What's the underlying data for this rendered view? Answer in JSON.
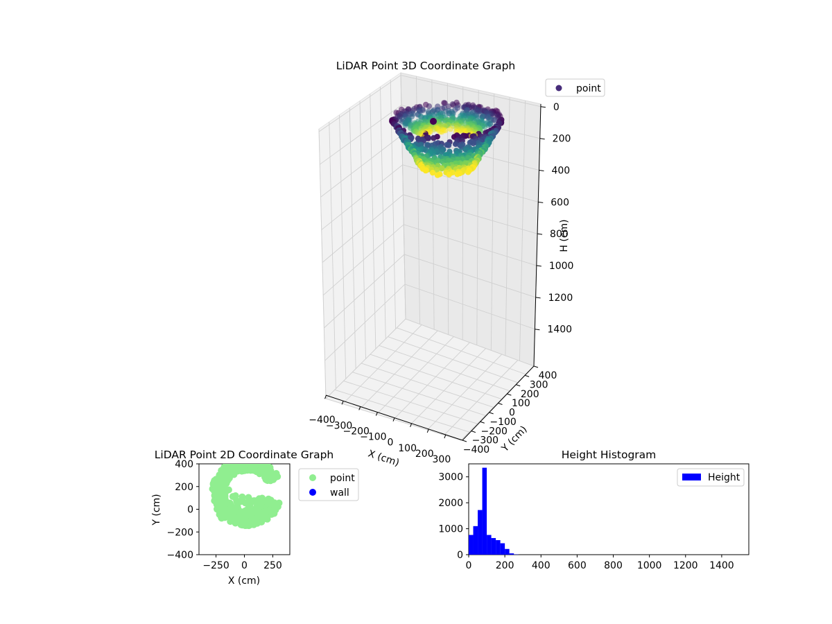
{
  "chart_data": [
    {
      "type": "scatter3d",
      "title": "LiDAR Point 3D Coordinate Graph",
      "xlabel": "X (cm)",
      "ylabel": "Y (cm)",
      "zlabel": "H (cm)",
      "xlim": [
        -400,
        400
      ],
      "ylim": [
        -400,
        400
      ],
      "zlim": [
        0,
        1550
      ],
      "z_inverted": true,
      "x_ticks": [
        "−400",
        "−300",
        "−200",
        "−100",
        "0",
        "100",
        "200",
        "300"
      ],
      "y_ticks": [
        "−400",
        "−300",
        "−200",
        "−100",
        "0",
        "100",
        "200",
        "300",
        "400"
      ],
      "z_ticks": [
        "0",
        "200",
        "400",
        "600",
        "800",
        "1000",
        "1200",
        "1400"
      ],
      "colormap": "viridis",
      "legend": [
        "point"
      ],
      "legend_position": "upper right",
      "grid": true
    },
    {
      "type": "scatter",
      "title": "LiDAR Point 2D Coordinate Graph",
      "xlabel": "X (cm)",
      "ylabel": "Y (cm)",
      "xlim": [
        -400,
        400
      ],
      "ylim": [
        -400,
        400
      ],
      "x_ticks": [
        "−250",
        "0",
        "250"
      ],
      "y_ticks": [
        "400",
        "200",
        "0",
        "−200",
        "−400"
      ],
      "series": [
        {
          "name": "point",
          "color": "#90ee90"
        },
        {
          "name": "wall",
          "color": "#0000ff"
        }
      ],
      "legend_position": "right"
    },
    {
      "type": "bar",
      "title": "Height Histogram",
      "xlabel": "",
      "ylabel": "",
      "xlim": [
        0,
        1550
      ],
      "ylim": [
        0,
        3500
      ],
      "x_ticks": [
        "0",
        "200",
        "400",
        "600",
        "800",
        "1000",
        "1200",
        "1400"
      ],
      "y_ticks": [
        "0",
        "1000",
        "2000",
        "3000"
      ],
      "bin_width": 25,
      "bin_start": 0,
      "values": [
        760,
        1100,
        1720,
        3350,
        760,
        640,
        560,
        440,
        220,
        50,
        10
      ],
      "series": [
        {
          "name": "Height",
          "color": "#0000ff"
        }
      ],
      "legend_position": "upper right"
    }
  ]
}
